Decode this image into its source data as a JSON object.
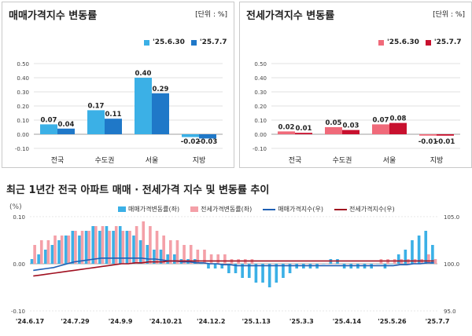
{
  "panels": [
    {
      "title": "매매가격지수 변동률",
      "unit": "[단위 : %]",
      "legend": [
        {
          "label": "'25.6.30",
          "color": "#3bb0e6"
        },
        {
          "label": "'25.7.7",
          "color": "#1f78c8"
        }
      ]
    },
    {
      "title": "전세가격지수 변동률",
      "unit": "[단위 : %]",
      "legend": [
        {
          "label": "'25.6.30",
          "color": "#f06a7a"
        },
        {
          "label": "'25.7.7",
          "color": "#c8102e"
        }
      ]
    }
  ],
  "bottom": {
    "title": "최근 1년간 전국 아파트 매매 · 전세가격 지수 및 변동률 추이",
    "ylabel_left": "(%)",
    "legend": [
      {
        "label": "매매가격변동률(좌)",
        "color": "#3bb0e6",
        "kind": "bar"
      },
      {
        "label": "전세가격변동률(좌)",
        "color": "#f4a0a8",
        "kind": "bar"
      },
      {
        "label": "매매가격지수(우)",
        "color": "#1f5fb4",
        "kind": "line"
      },
      {
        "label": "전세가격지수(우)",
        "color": "#a01020",
        "kind": "line"
      }
    ]
  },
  "chart_data": [
    {
      "type": "bar",
      "title": "매매가격지수 변동률",
      "categories": [
        "전국",
        "수도권",
        "서울",
        "지방"
      ],
      "series": [
        {
          "name": "'25.6.30",
          "values": [
            0.07,
            0.17,
            0.4,
            -0.02
          ],
          "color": "#3bb0e6"
        },
        {
          "name": "'25.7.7",
          "values": [
            0.04,
            0.11,
            0.29,
            -0.03
          ],
          "color": "#1f78c8"
        }
      ],
      "ylim": [
        -0.1,
        0.5
      ],
      "yticks": [
        "0.50",
        "0.40",
        "0.30",
        "0.20",
        "0.10",
        "0.00",
        "-0.10"
      ],
      "data_labels": [
        [
          "0.07",
          "0.17",
          "0.40",
          "-0.02"
        ],
        [
          "0.04",
          "0.11",
          "0.29",
          "-0.03"
        ]
      ]
    },
    {
      "type": "bar",
      "title": "전세가격지수 변동률",
      "categories": [
        "전국",
        "수도권",
        "서울",
        "지방"
      ],
      "series": [
        {
          "name": "'25.6.30",
          "values": [
            0.02,
            0.05,
            0.07,
            -0.01
          ],
          "color": "#f06a7a"
        },
        {
          "name": "'25.7.7",
          "values": [
            0.01,
            0.03,
            0.08,
            -0.01
          ],
          "color": "#c8102e"
        }
      ],
      "ylim": [
        -0.1,
        0.5
      ],
      "yticks": [
        "0.50",
        "0.40",
        "0.30",
        "0.20",
        "0.10",
        "0.00",
        "-0.10"
      ],
      "data_labels": [
        [
          "0.02",
          "0.05",
          "0.07",
          "-0.01"
        ],
        [
          "0.01",
          "0.03",
          "0.08",
          "-0.01"
        ]
      ]
    },
    {
      "type": "bar",
      "title": "최근 1년간 전국 아파트 매매 · 전세가격 지수 및 변동률 추이",
      "ylim_left": [
        -0.1,
        0.1
      ],
      "yticks_left": [
        "0.10",
        "0.00",
        "-0.10"
      ],
      "ylim_right": [
        95.0,
        105.0
      ],
      "yticks_right": [
        "105.0",
        "100.0",
        "95.0"
      ],
      "xtick_labels": [
        "'24.6.17",
        "'24.7.29",
        "'24.9.9",
        "'24.10.21",
        "'24.12.2",
        "'25.1.13",
        "'25.3.3",
        "'25.4.14",
        "'25.5.26",
        "'25.7.7"
      ],
      "series": [
        {
          "name": "매매가격변동률(좌)",
          "type": "bar",
          "values": [
            0.01,
            0.02,
            0.03,
            0.04,
            0.05,
            0.06,
            0.07,
            0.06,
            0.07,
            0.08,
            0.07,
            0.08,
            0.07,
            0.08,
            0.07,
            0.06,
            0.05,
            0.04,
            0.03,
            0.03,
            0.02,
            0.02,
            0.01,
            0.01,
            0.01,
            0.0,
            -0.01,
            -0.01,
            -0.01,
            -0.02,
            -0.02,
            -0.03,
            -0.03,
            -0.04,
            -0.04,
            -0.05,
            -0.04,
            -0.03,
            -0.02,
            -0.01,
            -0.01,
            -0.01,
            -0.01,
            0.0,
            0.01,
            0.01,
            -0.01,
            -0.01,
            -0.01,
            -0.01,
            -0.01,
            0.0,
            -0.01,
            0.0,
            0.02,
            0.03,
            0.05,
            0.06,
            0.07,
            0.04
          ]
        },
        {
          "name": "전세가격변동률(좌)",
          "type": "bar",
          "values": [
            0.04,
            0.05,
            0.05,
            0.06,
            0.06,
            0.06,
            0.07,
            0.07,
            0.07,
            0.08,
            0.08,
            0.07,
            0.08,
            0.07,
            0.07,
            0.08,
            0.09,
            0.08,
            0.07,
            0.06,
            0.05,
            0.05,
            0.04,
            0.04,
            0.03,
            0.03,
            0.02,
            0.02,
            0.02,
            0.01,
            0.01,
            0.01,
            0.01,
            0.0,
            0.0,
            0.0,
            0.0,
            0.0,
            0.0,
            0.0,
            0.0,
            0.0,
            0.0,
            0.0,
            0.0,
            0.0,
            0.0,
            0.0,
            0.0,
            0.0,
            0.0,
            0.01,
            0.01,
            0.01,
            0.01,
            0.01,
            0.01,
            0.01,
            0.02,
            0.01
          ]
        },
        {
          "name": "매매가격지수(우)",
          "type": "line",
          "values": [
            99.3,
            99.4,
            99.5,
            99.6,
            99.8,
            100.0,
            100.2,
            100.3,
            100.4,
            100.5,
            100.6,
            100.6,
            100.6,
            100.6,
            100.6,
            100.6,
            100.6,
            100.5,
            100.5,
            100.4,
            100.3,
            100.3,
            100.2,
            100.2,
            100.1,
            100.1,
            100.0,
            100.0,
            99.9,
            99.9,
            99.8,
            99.8,
            99.8,
            99.8,
            99.8,
            99.8,
            99.8,
            99.8,
            99.8,
            99.8,
            99.8,
            99.8,
            99.8,
            99.8,
            99.8,
            99.8,
            99.8,
            99.8,
            99.8,
            99.8,
            99.8,
            99.8,
            99.8,
            99.8,
            99.9,
            99.9,
            100.0,
            100.0,
            100.1,
            100.1
          ]
        },
        {
          "name": "전세가격지수(우)",
          "type": "line",
          "values": [
            98.7,
            98.8,
            98.9,
            99.0,
            99.1,
            99.2,
            99.3,
            99.4,
            99.5,
            99.6,
            99.7,
            99.8,
            99.9,
            100.0,
            100.0,
            100.1,
            100.1,
            100.2,
            100.2,
            100.2,
            100.3,
            100.3,
            100.3,
            100.3,
            100.3,
            100.3,
            100.3,
            100.3,
            100.3,
            100.3,
            100.3,
            100.3,
            100.3,
            100.3,
            100.3,
            100.3,
            100.3,
            100.3,
            100.3,
            100.3,
            100.3,
            100.3,
            100.3,
            100.3,
            100.3,
            100.3,
            100.3,
            100.3,
            100.3,
            100.3,
            100.3,
            100.3,
            100.3,
            100.3,
            100.3,
            100.3,
            100.3,
            100.3,
            100.3,
            100.3
          ]
        }
      ]
    }
  ]
}
